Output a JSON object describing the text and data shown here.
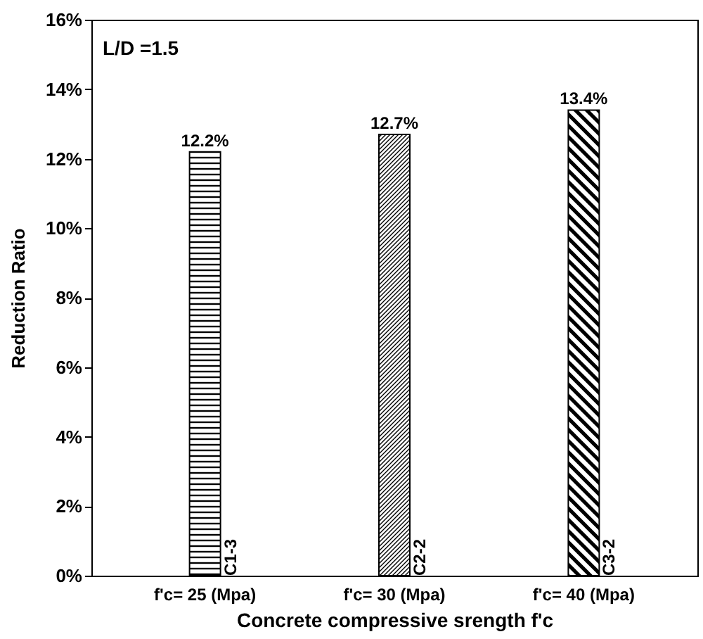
{
  "chart_data": {
    "type": "bar",
    "xlabel": "Concrete compressive srength f'c",
    "ylabel": "Reduction Ratio",
    "categories": [
      "f'c= 25 (Mpa)",
      "f'c= 30 (Mpa)",
      "f'c= 40 (Mpa)"
    ],
    "values": [
      12.2,
      12.7,
      13.4
    ],
    "colors": [
      "#000000",
      "#000000",
      "#000000"
    ],
    "value_labels": [
      "12.2%",
      "12.7%",
      "13.4%"
    ],
    "ylim": [
      0,
      16
    ],
    "yticks": [
      {
        "value": 0,
        "label": "0%"
      },
      {
        "value": 2,
        "label": "2%"
      },
      {
        "value": 4,
        "label": "4%"
      },
      {
        "value": 6,
        "label": "6%"
      },
      {
        "value": 8,
        "label": "8%"
      },
      {
        "value": 10,
        "label": "10%"
      },
      {
        "value": 12,
        "label": "12%"
      },
      {
        "value": 14,
        "label": "14%"
      },
      {
        "value": 16,
        "label": "16%"
      }
    ],
    "annotations": [
      "L/D =1.5",
      {
        "text": "C1-3",
        "x": "f'c= 25 (Mpa)",
        "y": 0
      },
      {
        "text": "C2-2",
        "x": "f'c= 30 (Mpa)",
        "y": 0
      },
      {
        "text": "C3-2",
        "x": "f'c= 40 (Mpa)",
        "y": 0
      }
    ],
    "grid": false
  }
}
